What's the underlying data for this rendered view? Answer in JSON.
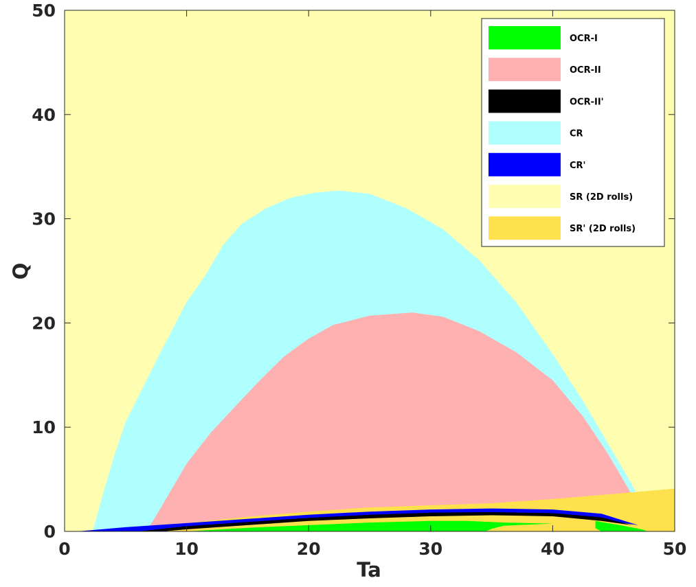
{
  "chart_data": {
    "type": "area",
    "title": "",
    "xlabel": "Ta",
    "ylabel": "Q",
    "xlim": [
      0,
      50
    ],
    "ylim": [
      0,
      50
    ],
    "xticks": [
      "0",
      "10",
      "20",
      "30",
      "40",
      "50"
    ],
    "yticks": [
      "0",
      "10",
      "20",
      "30",
      "40",
      "50"
    ],
    "grid": false,
    "legend_position": "top-right",
    "background_region": {
      "name": "SR (2D rolls)",
      "color": "#FFFDB0"
    },
    "series": [
      {
        "name": "CR",
        "color": "#B0FFFF",
        "points": [
          [
            2.3,
            0
          ],
          [
            3,
            3
          ],
          [
            4,
            7
          ],
          [
            5,
            10.5
          ],
          [
            6.5,
            14
          ],
          [
            8,
            17.5
          ],
          [
            10,
            22
          ],
          [
            11.5,
            24.5
          ],
          [
            13,
            27.5
          ],
          [
            14.5,
            29.5
          ],
          [
            16.5,
            31
          ],
          [
            18.5,
            32
          ],
          [
            20.5,
            32.5
          ],
          [
            22.5,
            32.7
          ],
          [
            25,
            32.4
          ],
          [
            28,
            31
          ],
          [
            31,
            29
          ],
          [
            34,
            26
          ],
          [
            37,
            22
          ],
          [
            40,
            17
          ],
          [
            42.5,
            12.5
          ],
          [
            44.5,
            8.5
          ],
          [
            46.5,
            4.5
          ],
          [
            48,
            1
          ],
          [
            48.3,
            0
          ]
        ]
      },
      {
        "name": "OCR-II",
        "color": "#FFB0B0",
        "points": [
          [
            6.7,
            0
          ],
          [
            7.5,
            1.5
          ],
          [
            8.5,
            3.5
          ],
          [
            10,
            6.5
          ],
          [
            12,
            9.5
          ],
          [
            14,
            12
          ],
          [
            16,
            14.5
          ],
          [
            18,
            16.8
          ],
          [
            20,
            18.5
          ],
          [
            22,
            19.8
          ],
          [
            25,
            20.7
          ],
          [
            28.5,
            21
          ],
          [
            31,
            20.6
          ],
          [
            34,
            19.2
          ],
          [
            37,
            17.2
          ],
          [
            40,
            14.5
          ],
          [
            42.5,
            11
          ],
          [
            44.5,
            7.5
          ],
          [
            46.5,
            3.5
          ],
          [
            47.5,
            1.2
          ],
          [
            47.9,
            0
          ]
        ]
      },
      {
        "name": "SR' (2D rolls)",
        "color": "#FFE04D",
        "points": [
          [
            5,
            0.2
          ],
          [
            10,
            0.8
          ],
          [
            15,
            1.4
          ],
          [
            20,
            1.9
          ],
          [
            25,
            2.3
          ],
          [
            30,
            2.5
          ],
          [
            35,
            2.7
          ],
          [
            40,
            3.1
          ],
          [
            45,
            3.6
          ],
          [
            50,
            4.1
          ],
          [
            50,
            0
          ],
          [
            5,
            0
          ]
        ]
      },
      {
        "name": "CR'",
        "color": "#0000FF",
        "points": [
          [
            1,
            0
          ],
          [
            5,
            0.4
          ],
          [
            10,
            0.8
          ],
          [
            15,
            1.2
          ],
          [
            20,
            1.6
          ],
          [
            25,
            1.9
          ],
          [
            30,
            2.1
          ],
          [
            35,
            2.2
          ],
          [
            40,
            2.1
          ],
          [
            44,
            1.7
          ],
          [
            47,
            0.6
          ],
          [
            44,
            1.1
          ],
          [
            40,
            1.6
          ],
          [
            35,
            1.75
          ],
          [
            30,
            1.65
          ],
          [
            25,
            1.45
          ],
          [
            20,
            1.2
          ],
          [
            15,
            0.8
          ],
          [
            10,
            0.35
          ],
          [
            6,
            0
          ]
        ]
      },
      {
        "name": "OCR-II'",
        "color": "#000000",
        "points": [
          [
            6,
            0
          ],
          [
            10,
            0.5
          ],
          [
            15,
            0.9
          ],
          [
            20,
            1.3
          ],
          [
            25,
            1.6
          ],
          [
            30,
            1.8
          ],
          [
            35,
            1.85
          ],
          [
            40,
            1.75
          ],
          [
            44,
            1.35
          ],
          [
            46.5,
            0.6
          ],
          [
            44,
            1.0
          ],
          [
            40,
            1.45
          ],
          [
            35,
            1.55
          ],
          [
            30,
            1.45
          ],
          [
            25,
            1.25
          ],
          [
            20,
            1.0
          ],
          [
            15,
            0.6
          ],
          [
            10,
            0.2
          ],
          [
            8,
            0
          ]
        ]
      },
      {
        "name": "OCR-I",
        "color": "#00FF00",
        "points": [
          [
            10,
            0
          ],
          [
            15,
            0.35
          ],
          [
            20,
            0.6
          ],
          [
            25,
            0.85
          ],
          [
            30,
            1.0
          ],
          [
            33,
            1.0
          ],
          [
            36,
            0.85
          ],
          [
            40,
            0.75
          ],
          [
            36,
            0.55
          ],
          [
            35,
            0.25
          ],
          [
            34.5,
            0
          ],
          [
            44,
            0
          ],
          [
            43.5,
            0.3
          ],
          [
            43.5,
            1.0
          ],
          [
            45.5,
            0.6
          ],
          [
            47.3,
            0.2
          ],
          [
            47.8,
            0
          ]
        ]
      }
    ]
  }
}
